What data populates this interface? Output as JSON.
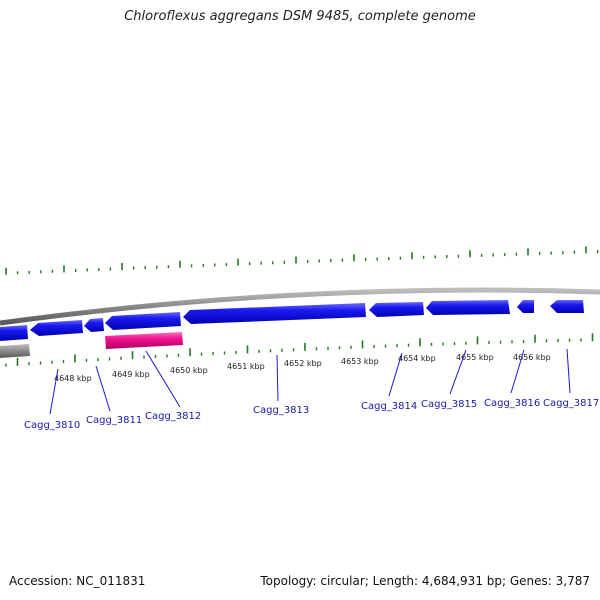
{
  "title": "Chloroflexus aggregans DSM 9485, complete genome",
  "footer": {
    "accession": "Accession: NC_011831",
    "summary": "Topology: circular; Length: 4,684,931 bp; Genes: 3,787"
  },
  "colors": {
    "gene": "#1010e0",
    "highlight": "#f0108c",
    "backbone": "#8a8a8a",
    "tick": "#1f7a1f",
    "label": "#1a1aa8"
  },
  "ticks": [
    "4648 kbp",
    "4649 kbp",
    "4650 kbp",
    "4651 kbp",
    "4652 kbp",
    "4653 kbp",
    "4654 kbp",
    "4655 kbp",
    "4656 kbp"
  ],
  "genes": [
    "Cagg_3810",
    "Cagg_3811",
    "Cagg_3812",
    "Cagg_3813",
    "Cagg_3814",
    "Cagg_3815",
    "Cagg_3816",
    "Cagg_3817"
  ]
}
